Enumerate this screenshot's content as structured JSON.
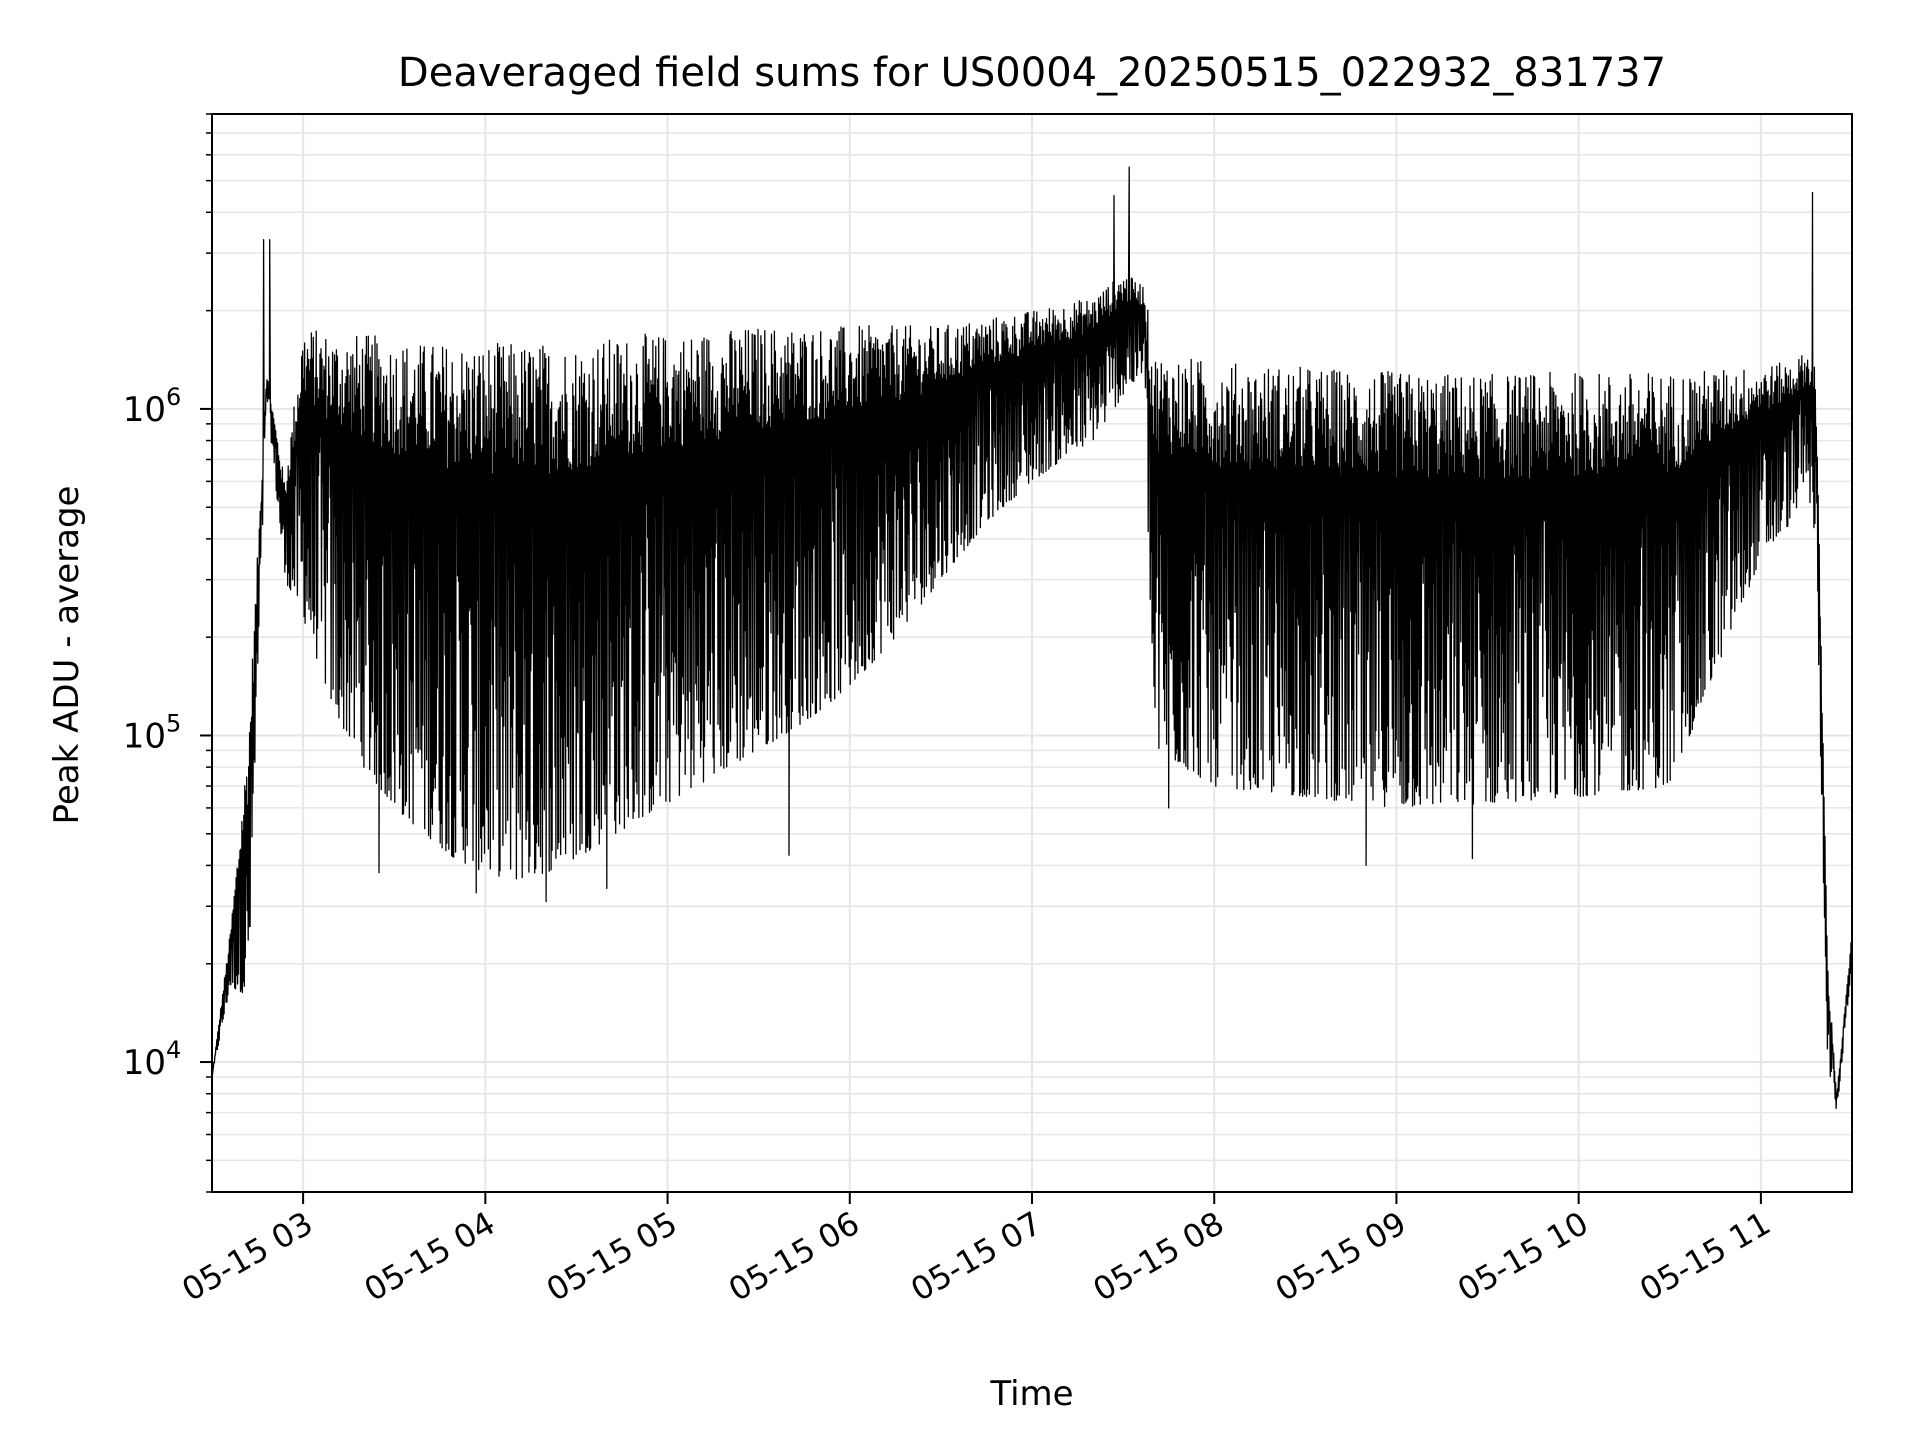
{
  "chart_data": {
    "type": "line",
    "title": "Deaveraged field sums for US0004_20250515_022932_831737",
    "xlabel": "Time",
    "ylabel": "Peak ADU - average",
    "yscale": "log",
    "xlim": [
      "2025-05-15 02:30",
      "2025-05-15 11:30"
    ],
    "ylim": [
      4000,
      8000000
    ],
    "grid": true,
    "line_color": "#000000",
    "grid_color": "#e6e6e6",
    "x_ticks": [
      "05-15 03",
      "05-15 04",
      "05-15 05",
      "05-15 06",
      "05-15 07",
      "05-15 08",
      "05-15 09",
      "05-15 10",
      "05-15 11"
    ],
    "x_tick_times": [
      "2025-05-15 03:00",
      "2025-05-15 04:00",
      "2025-05-15 05:00",
      "2025-05-15 06:00",
      "2025-05-15 07:00",
      "2025-05-15 08:00",
      "2025-05-15 09:00",
      "2025-05-15 10:00",
      "2025-05-15 11:00"
    ],
    "y_ticks": [
      {
        "base": "10",
        "exp": "4",
        "value": 10000
      },
      {
        "base": "10",
        "exp": "5",
        "value": 100000
      },
      {
        "base": "10",
        "exp": "6",
        "value": 1000000
      }
    ],
    "envelope": {
      "description_units": "time as HH:MM on 2025-05-15, values in Peak ADU - average",
      "time": [
        "02:30",
        "02:36",
        "02:42",
        "02:48",
        "02:54",
        "03:00",
        "03:10",
        "03:20",
        "03:30",
        "03:40",
        "03:50",
        "04:00",
        "04:10",
        "04:20",
        "04:30",
        "04:40",
        "04:50",
        "05:00",
        "05:15",
        "05:30",
        "05:45",
        "06:00",
        "06:15",
        "06:30",
        "06:45",
        "07:00",
        "07:10",
        "07:20",
        "07:30",
        "07:37",
        "07:40",
        "07:50",
        "08:00",
        "08:30",
        "09:00",
        "09:30",
        "10:00",
        "10:30",
        "11:00",
        "11:10",
        "11:15",
        "11:18",
        "11:22",
        "11:25",
        "11:30"
      ],
      "upper": [
        9000,
        25000,
        100000,
        1300000,
        600000,
        1800000,
        1700000,
        1700000,
        1650000,
        1600000,
        1600000,
        1600000,
        1600000,
        1600000,
        1600000,
        1650000,
        1700000,
        1700000,
        1750000,
        1800000,
        1800000,
        1800000,
        1800000,
        1800000,
        1900000,
        2000000,
        2100000,
        2200000,
        2600000,
        2400000,
        1500000,
        1450000,
        1400000,
        1350000,
        1300000,
        1280000,
        1300000,
        1300000,
        1350000,
        1400000,
        1500000,
        1400000,
        20000,
        8000,
        25000
      ],
      "lower": [
        9000,
        17000,
        16000,
        1100000,
        300000,
        230000,
        120000,
        80000,
        60000,
        50000,
        42000,
        38000,
        36000,
        38000,
        42000,
        48000,
        55000,
        62000,
        75000,
        90000,
        110000,
        140000,
        200000,
        300000,
        450000,
        600000,
        700000,
        800000,
        1100000,
        1300000,
        90000,
        80000,
        70000,
        65000,
        60000,
        62000,
        65000,
        70000,
        350000,
        450000,
        600000,
        400000,
        10000,
        7000,
        20000
      ],
      "minima_time": [
        "03:25",
        "03:57",
        "04:20",
        "04:40",
        "05:40",
        "07:45",
        "08:50",
        "09:25"
      ],
      "minima_value": [
        38000,
        33000,
        31000,
        34000,
        43000,
        60000,
        40000,
        42000
      ],
      "spikes_time": [
        "02:47",
        "02:49",
        "07:27",
        "07:32",
        "11:17"
      ],
      "spikes_value": [
        3300000,
        3300000,
        4500000,
        5500000,
        4600000
      ]
    }
  }
}
